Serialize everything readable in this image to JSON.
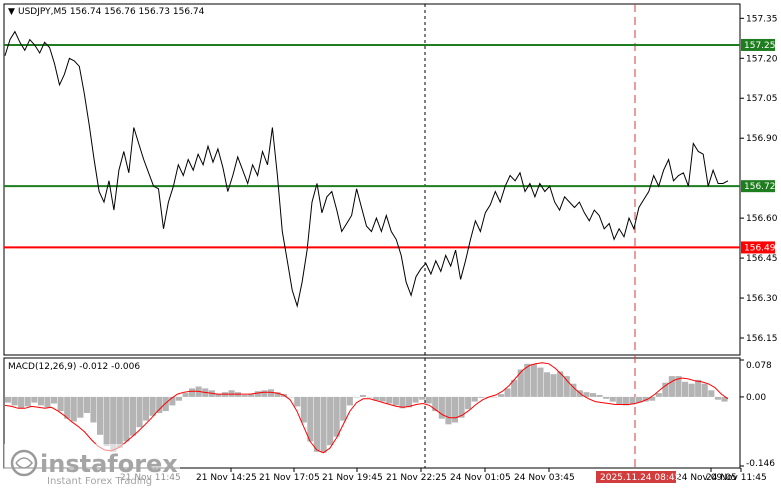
{
  "chart_data": [
    {
      "type": "line",
      "title": "USDJPY,M5  156.74 156.76 156.73 156.74",
      "symbol": "USDJPY,M5",
      "ohlc": {
        "open": 156.74,
        "high": 156.76,
        "low": 156.73,
        "close": 156.74
      },
      "ylim": [
        156.09,
        157.4
      ],
      "y_ticks": [
        "157.35",
        "157.20",
        "157.05",
        "156.90",
        "156.60",
        "156.45",
        "156.30",
        "156.15"
      ],
      "x_ticks": [
        "21 Nov 11:45",
        "21 Nov 14:25",
        "21 Nov 17:05",
        "21 Nov 19:45",
        "21 Nov 22:25",
        "24 Nov 01:05",
        "24 Nov 03:45",
        "24 Nov 09:05",
        "24 Nov 11:45"
      ],
      "current_time_label": "2025.11.24 08:45",
      "levels": [
        {
          "value": 157.25,
          "label": "157.25",
          "color": "#1e7d1e"
        },
        {
          "value": 156.72,
          "label": "156.72",
          "color": "#1e7d1e"
        },
        {
          "value": 156.49,
          "label": "156.49",
          "color": "#ff0000"
        }
      ],
      "price_marker": "156.72",
      "series": [
        {
          "values": [
            157.21,
            157.27,
            157.3,
            157.26,
            157.23,
            157.27,
            157.25,
            157.22,
            157.26,
            157.24,
            157.18,
            157.1,
            157.14,
            157.2,
            157.19,
            157.17,
            157.07,
            156.95,
            156.82,
            156.7,
            156.66,
            156.74,
            156.63,
            156.78,
            156.85,
            156.77,
            156.94,
            156.88,
            156.82,
            156.77,
            156.72,
            156.71,
            156.56,
            156.66,
            156.72,
            156.8,
            156.76,
            156.82,
            156.78,
            156.84,
            156.8,
            156.87,
            156.81,
            156.86,
            156.79,
            156.7,
            156.76,
            156.83,
            156.78,
            156.73,
            156.8,
            156.76,
            156.85,
            156.8,
            156.94,
            156.76,
            156.55,
            156.44,
            156.33,
            156.27,
            156.36,
            156.48,
            156.66,
            156.73,
            156.62,
            156.68,
            156.7,
            156.63,
            156.55,
            156.58,
            156.61,
            156.71,
            156.64,
            156.57,
            156.55,
            156.6,
            156.55,
            156.61,
            156.55,
            156.52,
            156.46,
            156.36,
            156.31,
            156.38,
            156.41,
            156.43,
            156.39,
            156.44,
            156.4,
            156.46,
            156.42,
            156.48,
            156.37,
            156.44,
            156.52,
            156.59,
            156.55,
            156.62,
            156.65,
            156.7,
            156.66,
            156.72,
            156.76,
            156.74,
            156.77,
            156.7,
            156.73,
            156.68,
            156.73,
            156.7,
            156.72,
            156.66,
            156.63,
            156.68,
            156.66,
            156.64,
            156.66,
            156.62,
            156.59,
            156.63,
            156.61,
            156.56,
            156.58,
            156.52,
            156.56,
            156.53,
            156.6,
            156.56,
            156.64,
            156.67,
            156.7,
            156.76,
            156.72,
            156.78,
            156.82,
            156.74,
            156.76,
            156.77,
            156.72,
            156.88,
            156.85,
            156.84,
            156.72,
            156.78,
            156.73,
            156.73,
            156.74
          ]
        }
      ]
    },
    {
      "type": "area",
      "title": "MACD(12,26,9) -0.012 -0.006",
      "name": "MACD(12,26,9)",
      "macd_value": -0.012,
      "signal_value": -0.006,
      "ylim": [
        -0.146,
        0.078
      ],
      "y_ticks": [
        "0.078",
        "0.00",
        "-0.146"
      ],
      "histogram": [
        -0.012,
        -0.018,
        -0.024,
        -0.02,
        -0.012,
        -0.018,
        -0.022,
        -0.014,
        -0.03,
        -0.046,
        -0.052,
        -0.044,
        -0.034,
        -0.054,
        -0.08,
        -0.104,
        -0.116,
        -0.108,
        -0.094,
        -0.082,
        -0.064,
        -0.05,
        -0.04,
        -0.034,
        -0.03,
        -0.018,
        -0.008,
        0.008,
        0.018,
        0.022,
        0.018,
        0.014,
        0.006,
        0.01,
        0.014,
        0.01,
        0.004,
        0.006,
        0.012,
        0.014,
        0.016,
        0.01,
        0.006,
        0.0,
        -0.02,
        -0.054,
        -0.094,
        -0.116,
        -0.118,
        -0.102,
        -0.084,
        -0.05,
        -0.018,
        0.0,
        0.004,
        0.0,
        -0.008,
        -0.01,
        -0.014,
        -0.018,
        -0.024,
        -0.022,
        -0.012,
        -0.006,
        -0.014,
        -0.03,
        -0.046,
        -0.058,
        -0.054,
        -0.044,
        -0.026,
        -0.01,
        -0.002,
        0.0,
        0.0,
        0.006,
        0.018,
        0.036,
        0.058,
        0.07,
        0.07,
        0.062,
        0.052,
        0.048,
        0.054,
        0.044,
        0.028,
        0.014,
        0.01,
        0.008,
        0.004,
        -0.004,
        -0.01,
        -0.016,
        -0.018,
        -0.016,
        -0.012,
        -0.01,
        -0.008,
        0.008,
        0.03,
        0.044,
        0.044,
        0.032,
        0.028,
        0.036,
        0.028,
        0.014,
        -0.006,
        -0.01
      ],
      "signal": [
        -0.018,
        -0.02,
        -0.024,
        -0.024,
        -0.02,
        -0.022,
        -0.024,
        -0.022,
        -0.03,
        -0.04,
        -0.052,
        -0.062,
        -0.074,
        -0.09,
        -0.104,
        -0.112,
        -0.114,
        -0.108,
        -0.098,
        -0.086,
        -0.074,
        -0.06,
        -0.046,
        -0.03,
        -0.016,
        -0.004,
        0.006,
        0.01,
        0.012,
        0.012,
        0.01,
        0.008,
        0.006,
        0.006,
        0.006,
        0.006,
        0.006,
        0.006,
        0.008,
        0.01,
        0.01,
        0.008,
        0.004,
        -0.006,
        -0.03,
        -0.062,
        -0.094,
        -0.112,
        -0.118,
        -0.108,
        -0.086,
        -0.058,
        -0.03,
        -0.012,
        -0.004,
        -0.004,
        -0.008,
        -0.012,
        -0.016,
        -0.02,
        -0.022,
        -0.02,
        -0.016,
        -0.014,
        -0.018,
        -0.028,
        -0.038,
        -0.044,
        -0.044,
        -0.038,
        -0.028,
        -0.016,
        -0.006,
        0.0,
        0.004,
        0.012,
        0.024,
        0.04,
        0.056,
        0.066,
        0.07,
        0.072,
        0.07,
        0.06,
        0.046,
        0.03,
        0.016,
        0.004,
        -0.004,
        -0.01,
        -0.012,
        -0.014,
        -0.016,
        -0.016,
        -0.016,
        -0.014,
        -0.01,
        -0.004,
        0.006,
        0.018,
        0.028,
        0.036,
        0.04,
        0.038,
        0.034,
        0.032,
        0.028,
        0.02,
        0.006,
        -0.004
      ]
    }
  ],
  "colors": {
    "price_line": "#000000",
    "level_green": "#1e7d1e",
    "level_red": "#ff0000",
    "histogram": "#b4b4b4",
    "signal_line": "#ff0000",
    "label_bg_dark": "#1e7d1e",
    "vline_red": "#d23c3c"
  },
  "watermark": {
    "brand": "instaforex",
    "tagline": "Instant Forex Trading"
  }
}
